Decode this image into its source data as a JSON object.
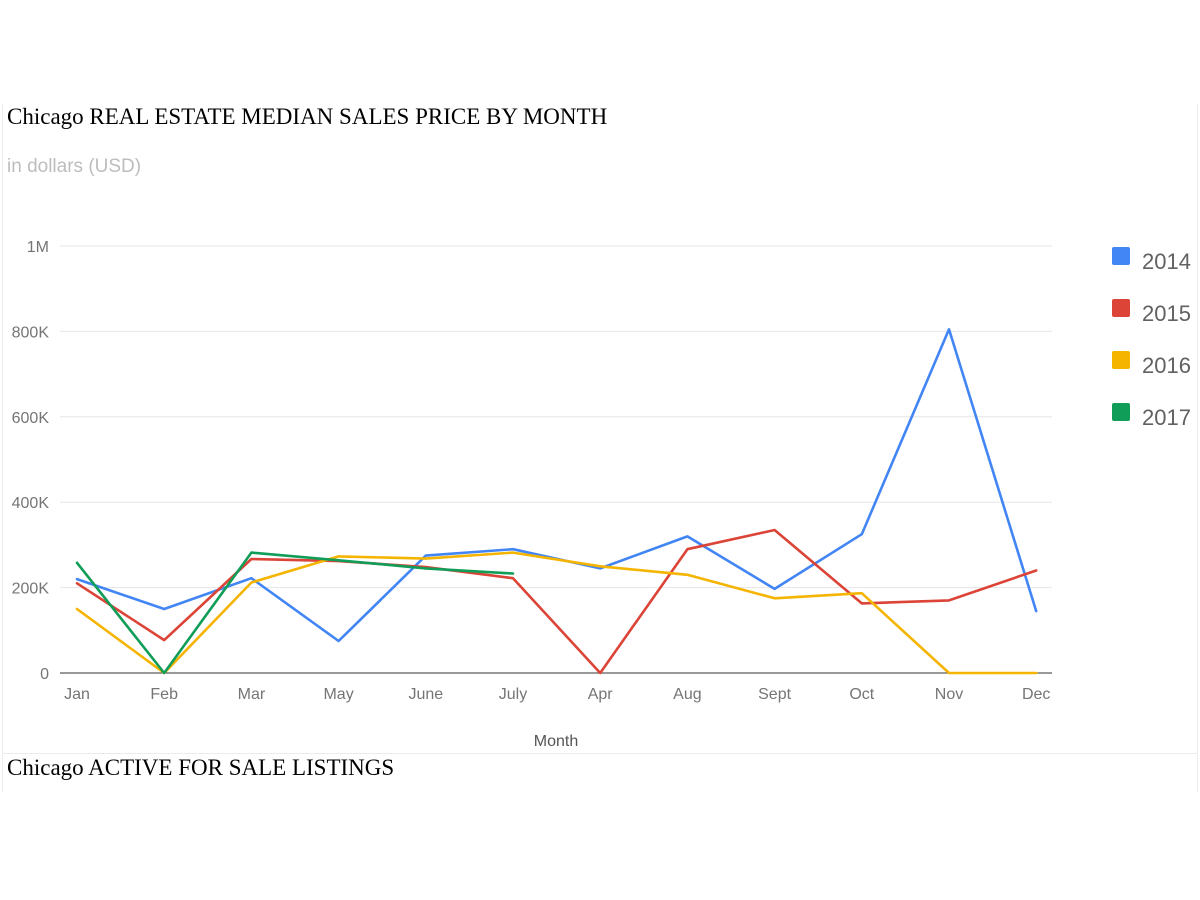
{
  "page": {
    "section_title": "Chicago ACTIVE FOR SALE LISTINGS"
  },
  "chart_data": {
    "type": "line",
    "title": "Chicago REAL ESTATE MEDIAN SALES PRICE BY MONTH",
    "subtitle": "in dollars (USD)",
    "xlabel": "Month",
    "ylabel": "",
    "categories": [
      "Jan",
      "Feb",
      "Mar",
      "May",
      "June",
      "July",
      "Apr",
      "Aug",
      "Sept",
      "Oct",
      "Nov",
      "Dec"
    ],
    "ylim": [
      0,
      1000000
    ],
    "yticks": [
      {
        "value": 0,
        "label": "0"
      },
      {
        "value": 200000,
        "label": "200K"
      },
      {
        "value": 400000,
        "label": "400K"
      },
      {
        "value": 600000,
        "label": "600K"
      },
      {
        "value": 800000,
        "label": "800K"
      },
      {
        "value": 1000000,
        "label": "1M"
      }
    ],
    "grid": true,
    "legend_position": "right",
    "series": [
      {
        "name": "2014",
        "color": "#4285f4",
        "values": [
          220000,
          150000,
          222000,
          75000,
          275000,
          290000,
          245000,
          320000,
          197000,
          325000,
          805000,
          145000
        ]
      },
      {
        "name": "2015",
        "color": "#db4437",
        "values": [
          210000,
          77000,
          267000,
          262000,
          248000,
          222000,
          0,
          290000,
          335000,
          163000,
          170000,
          240000
        ]
      },
      {
        "name": "2016",
        "color": "#f4b400",
        "values": [
          150000,
          0,
          212000,
          273000,
          268000,
          282000,
          250000,
          230000,
          175000,
          187000,
          0,
          0
        ]
      },
      {
        "name": "2017",
        "color": "#0f9d58",
        "values": [
          258000,
          0,
          282000,
          264000,
          245000,
          233000,
          null,
          null,
          null,
          null,
          null,
          null
        ]
      }
    ]
  }
}
